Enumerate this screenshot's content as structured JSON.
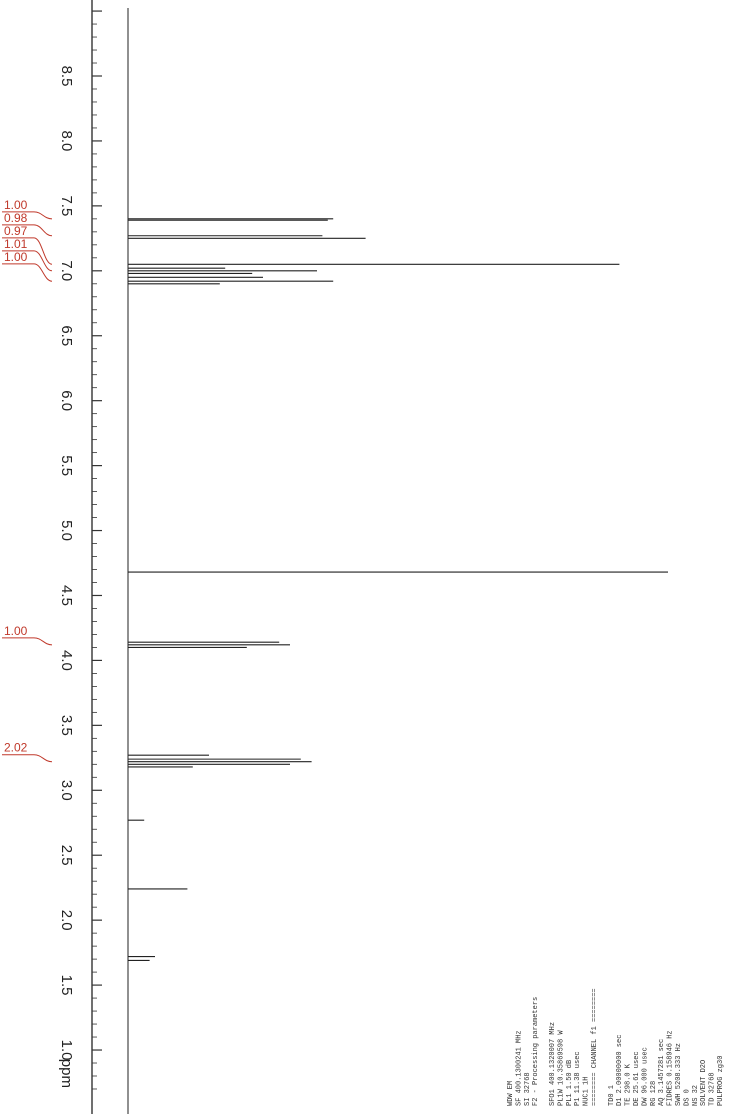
{
  "chart_data": {
    "type": "line",
    "title": "",
    "xlabel": "ppm",
    "ylabel": "",
    "xlim": [
      0.7,
      9.0
    ],
    "ticks": [
      "8.5",
      "8.0",
      "7.5",
      "7.0",
      "6.5",
      "6.0",
      "5.5",
      "5.0",
      "4.5",
      "4.0",
      "3.5",
      "3.0",
      "2.5",
      "2.0",
      "1.5",
      "1.0"
    ],
    "tick_values": [
      8.5,
      8.0,
      7.5,
      7.0,
      6.5,
      6.0,
      5.5,
      5.0,
      4.5,
      4.0,
      3.5,
      3.0,
      2.5,
      2.0,
      1.5,
      1.0
    ],
    "unit_label": "ppm",
    "peaks": [
      {
        "ppm": 7.4,
        "intensity": 0.38
      },
      {
        "ppm": 7.39,
        "intensity": 0.37
      },
      {
        "ppm": 7.27,
        "intensity": 0.36
      },
      {
        "ppm": 7.25,
        "intensity": 0.44
      },
      {
        "ppm": 7.05,
        "intensity": 0.91
      },
      {
        "ppm": 7.02,
        "intensity": 0.18
      },
      {
        "ppm": 7.0,
        "intensity": 0.35
      },
      {
        "ppm": 6.98,
        "intensity": 0.23
      },
      {
        "ppm": 6.95,
        "intensity": 0.25
      },
      {
        "ppm": 6.92,
        "intensity": 0.38
      },
      {
        "ppm": 6.9,
        "intensity": 0.17
      },
      {
        "ppm": 4.68,
        "intensity": 1.0
      },
      {
        "ppm": 4.14,
        "intensity": 0.28
      },
      {
        "ppm": 4.12,
        "intensity": 0.3
      },
      {
        "ppm": 4.1,
        "intensity": 0.22
      },
      {
        "ppm": 3.27,
        "intensity": 0.15
      },
      {
        "ppm": 3.24,
        "intensity": 0.32
      },
      {
        "ppm": 3.22,
        "intensity": 0.34
      },
      {
        "ppm": 3.2,
        "intensity": 0.3
      },
      {
        "ppm": 3.18,
        "intensity": 0.12
      },
      {
        "ppm": 2.77,
        "intensity": 0.03
      },
      {
        "ppm": 2.24,
        "intensity": 0.11
      },
      {
        "ppm": 1.72,
        "intensity": 0.05
      },
      {
        "ppm": 1.69,
        "intensity": 0.04
      }
    ],
    "integrals": [
      {
        "label": "1.00",
        "ppm": 7.4
      },
      {
        "label": "0.98",
        "ppm": 7.27
      },
      {
        "label": "0.97",
        "ppm": 7.05
      },
      {
        "label": "1.01",
        "ppm": 7.0
      },
      {
        "label": "1.00",
        "ppm": 6.92
      },
      {
        "label": "1.00",
        "ppm": 4.12
      },
      {
        "label": "2.02",
        "ppm": 3.22
      }
    ],
    "acquisition_params": [
      "PULPROG          zg30",
      "TD              32768",
      "SOLVENT           D2O",
      "NS                 32",
      "DS                  0",
      "SWH          5208.333 Hz",
      "FIDRES       0.158946 Hz",
      "AQ          3.1457281 sec",
      "RG                128",
      "DW             96.000 usec",
      "DE              25.61 usec",
      "TE              298.0 K",
      "D1         2.00000000 sec",
      "TD0                 1",
      "",
      "======== CHANNEL f1 ========",
      "NUC1                1H",
      "P1              11.38 usec",
      "PL1              1.50 dB",
      "PL1W      10.35869598 W",
      "SFO1      400.1320007 MHz",
      "",
      "F2 - Processing parameters",
      "SI              32768",
      "SF        400.1300241 MHz",
      "WDW                EM"
    ]
  }
}
